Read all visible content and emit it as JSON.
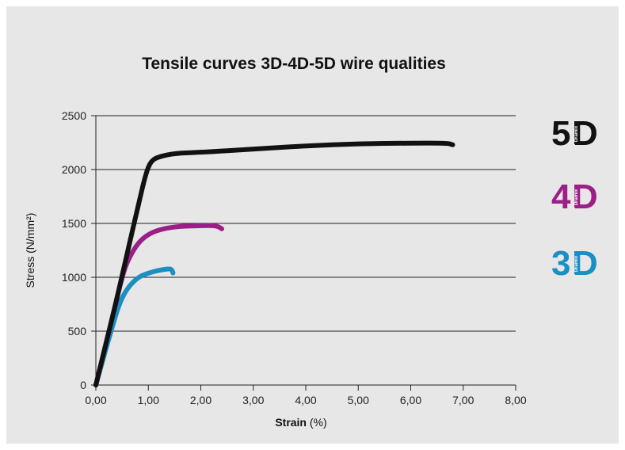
{
  "chart_data": {
    "type": "line",
    "title": "Tensile curves 3D-4D-5D wire qualities",
    "xlabel": "Strain",
    "xlabel_unit": "(%)",
    "ylabel": "Stress (N/mm²)",
    "xlim": [
      0,
      8
    ],
    "ylim": [
      0,
      2500
    ],
    "x_ticks": [
      "0,00",
      "1,00",
      "2,00",
      "3,00",
      "4,00",
      "5,00",
      "6,00",
      "7,00",
      "8,00"
    ],
    "y_ticks": [
      "0",
      "500",
      "1000",
      "1500",
      "2000",
      "2500"
    ],
    "grid": "horizontal",
    "series": [
      {
        "name": "5D",
        "color": "#111111",
        "x": [
          0,
          0.2,
          0.4,
          0.6,
          0.8,
          0.95,
          1.05,
          1.2,
          1.5,
          2.0,
          3.0,
          4.0,
          5.0,
          6.0,
          6.7,
          6.8
        ],
        "y": [
          0,
          400,
          800,
          1230,
          1650,
          1960,
          2080,
          2120,
          2150,
          2160,
          2190,
          2220,
          2240,
          2245,
          2245,
          2230
        ]
      },
      {
        "name": "4D",
        "color": "#9b1f86",
        "x": [
          0,
          0.2,
          0.4,
          0.5,
          0.6,
          0.8,
          1.0,
          1.2,
          1.5,
          2.0,
          2.3,
          2.4
        ],
        "y": [
          0,
          400,
          800,
          1000,
          1150,
          1320,
          1400,
          1440,
          1470,
          1480,
          1480,
          1450
        ]
      },
      {
        "name": "3D",
        "color": "#1b8ec4",
        "x": [
          0,
          0.15,
          0.3,
          0.45,
          0.6,
          0.8,
          1.0,
          1.2,
          1.4,
          1.45,
          1.47
        ],
        "y": [
          0,
          260,
          520,
          760,
          900,
          1000,
          1040,
          1065,
          1080,
          1070,
          1040
        ]
      }
    ]
  },
  "brand_labels": [
    {
      "number": "5",
      "letter": "D",
      "tag": "Dramix",
      "color": "#111111"
    },
    {
      "number": "4",
      "letter": "D",
      "tag": "Dramix",
      "color": "#9b1f86"
    },
    {
      "number": "3",
      "letter": "D",
      "tag": "Dramix",
      "color": "#1b8ec4"
    }
  ]
}
